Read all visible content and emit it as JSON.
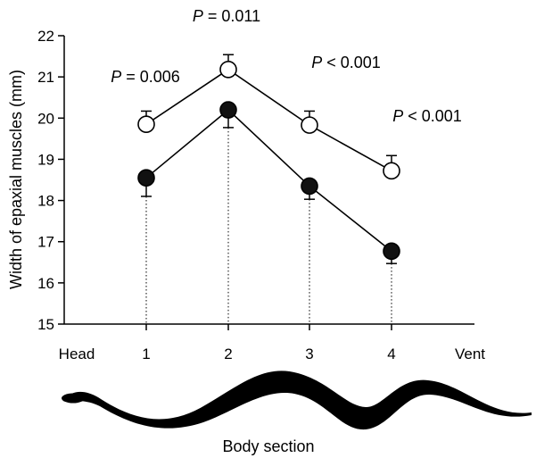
{
  "chart_data": {
    "type": "line",
    "ylabel": "Width of epaxial muscles (mm)",
    "xlabel": "Body section",
    "ylim": [
      15,
      22
    ],
    "yticks": [
      15,
      16,
      17,
      18,
      19,
      20,
      21,
      22
    ],
    "x_start_label": "Head",
    "x_end_label": "Vent",
    "categories": [
      "1",
      "2",
      "3",
      "4"
    ],
    "grid": false,
    "series": [
      {
        "marker": "open-circle",
        "values": [
          19.85,
          21.18,
          19.83,
          18.72
        ],
        "errors": [
          0.32,
          0.36,
          0.34,
          0.37
        ]
      },
      {
        "marker": "filled-circle",
        "values": [
          18.55,
          20.2,
          18.35,
          16.77
        ],
        "errors": [
          0.45,
          0.43,
          0.32,
          0.3
        ]
      }
    ],
    "annotations": [
      {
        "category": "1",
        "prefix": "P",
        "text": " = 0.006"
      },
      {
        "category": "2",
        "prefix": "P",
        "text": " = 0.011"
      },
      {
        "category": "3",
        "prefix": "P",
        "text": " < 0.001"
      },
      {
        "category": "4",
        "prefix": "P",
        "text": " < 0.001"
      }
    ],
    "colors": {
      "open_fill": "#ffffff",
      "filled_fill": "#111111",
      "stroke": "#000000"
    }
  }
}
